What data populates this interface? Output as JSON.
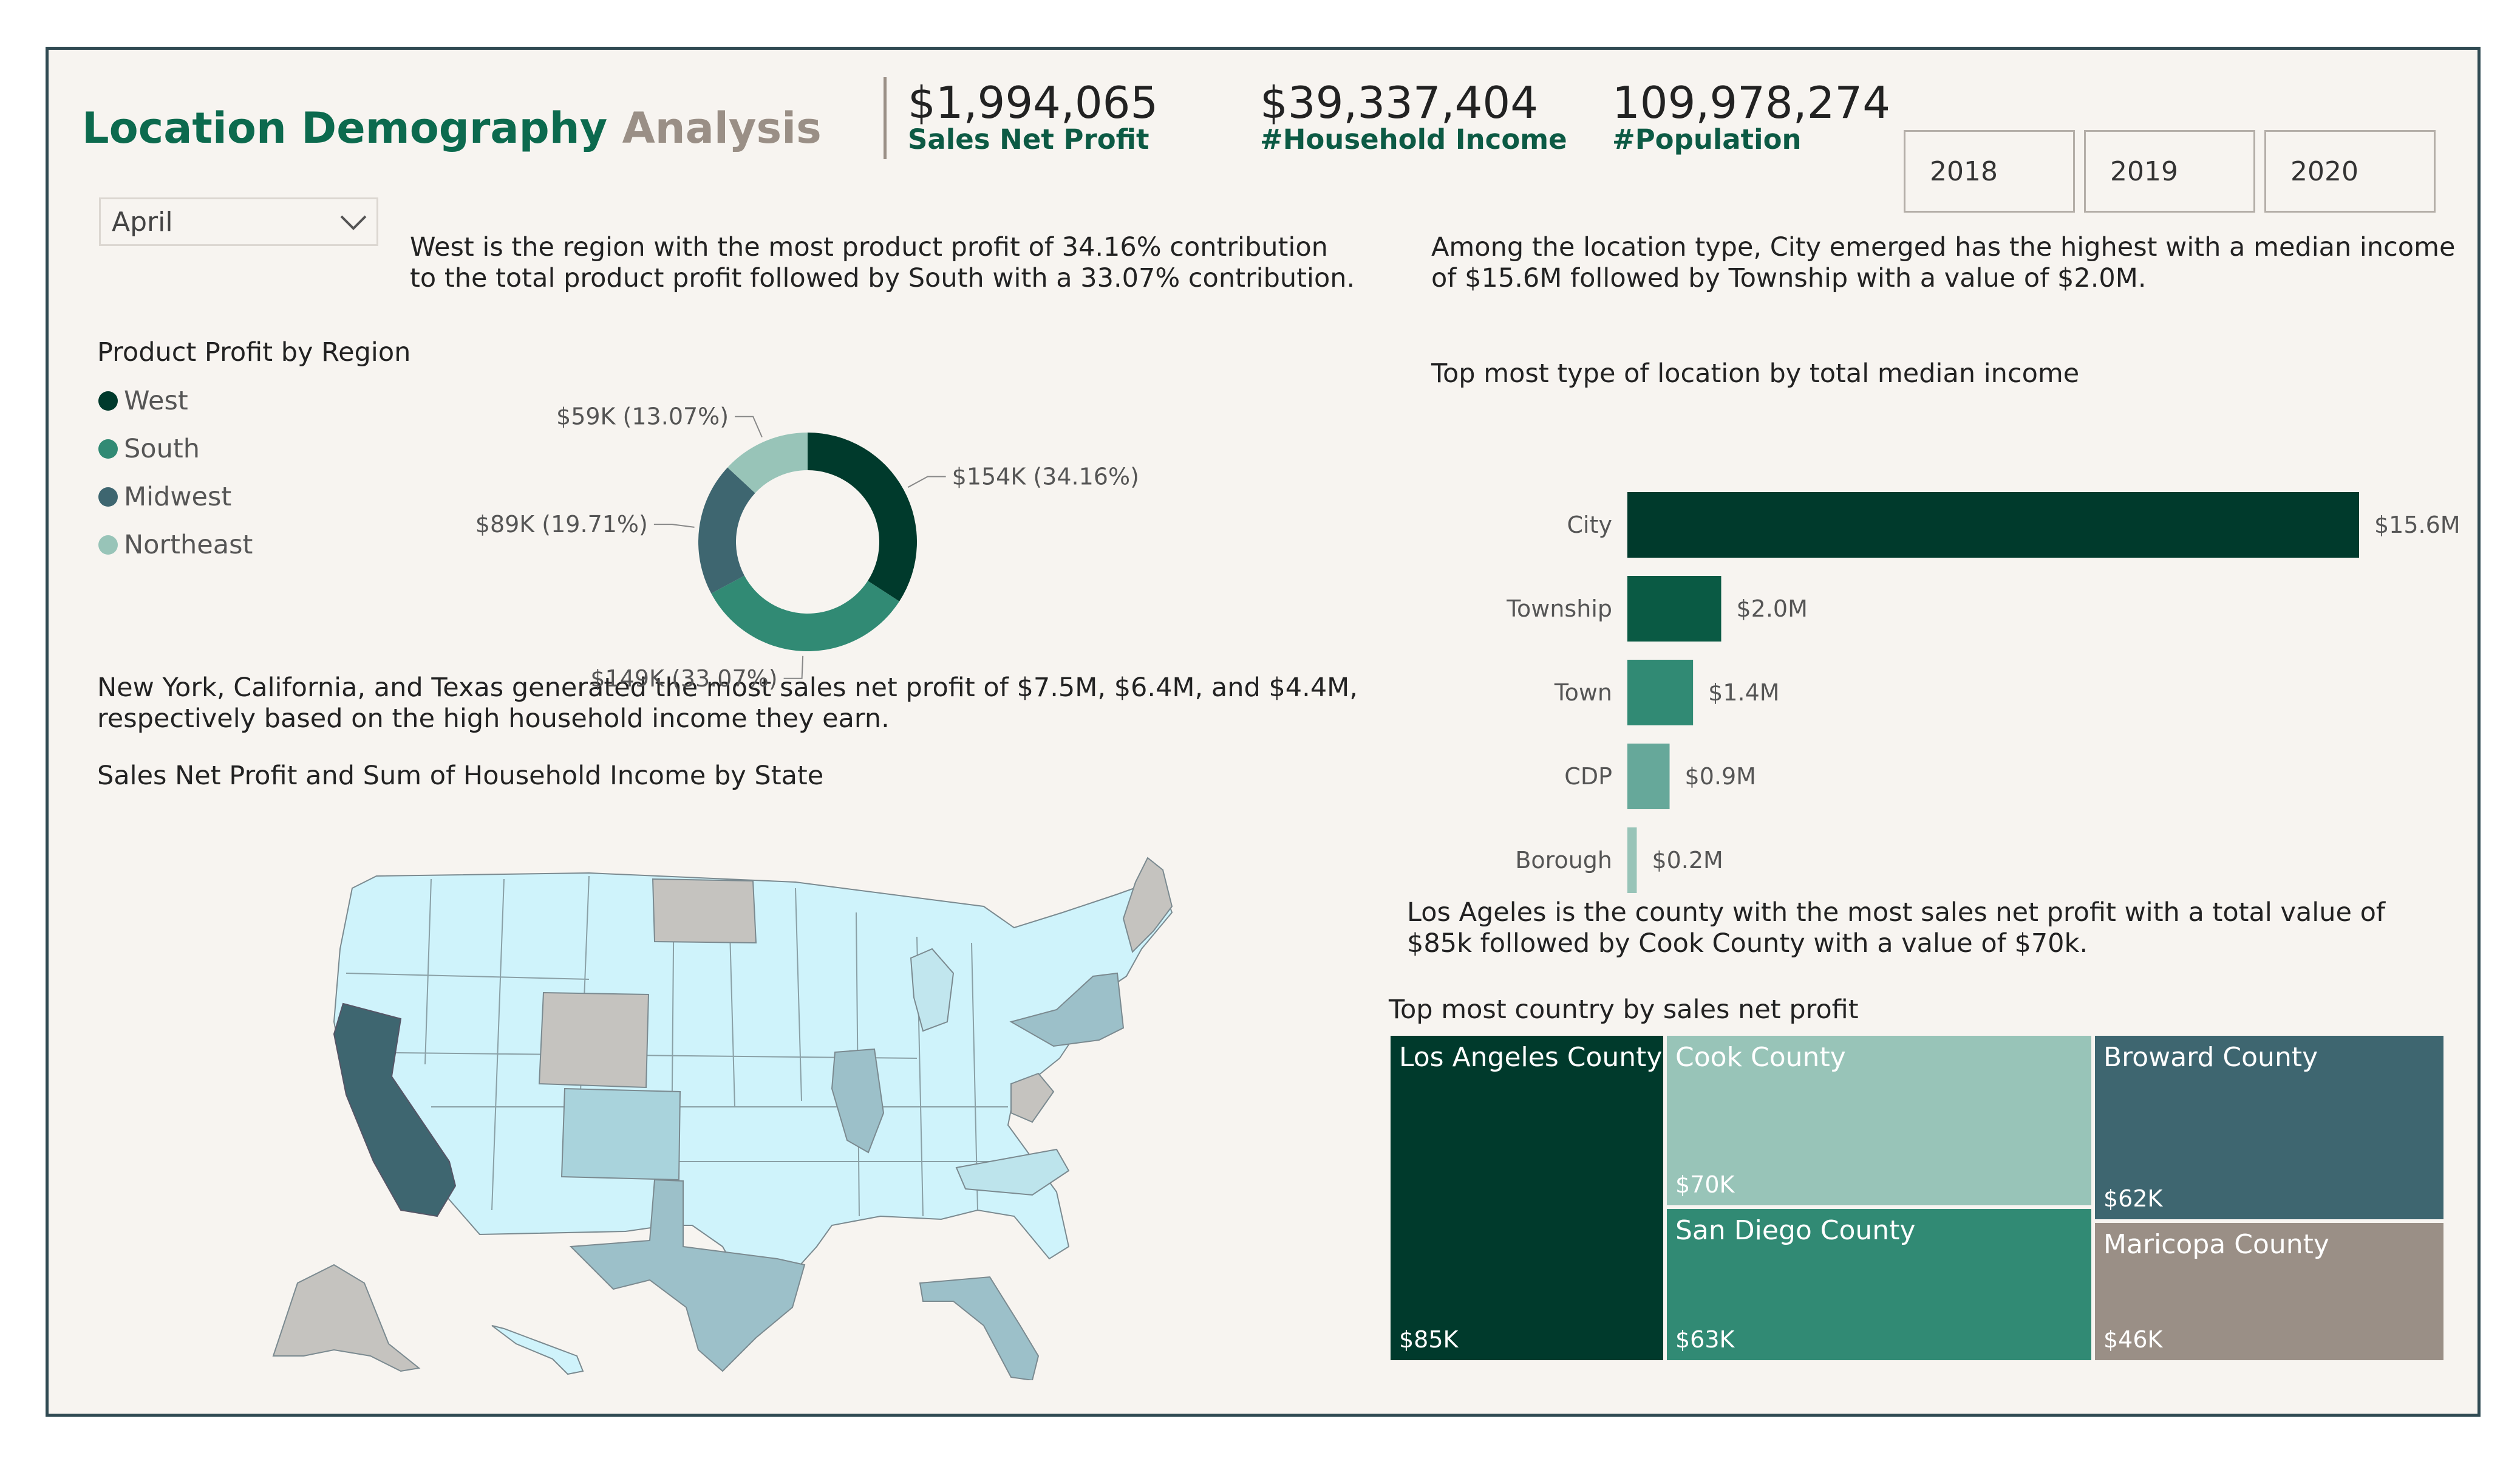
{
  "header": {
    "title_part1": "Location Demography",
    "title_part2": "Analysis",
    "kpis": [
      {
        "value": "$1,994,065",
        "label": "Sales Net Profit"
      },
      {
        "value": "$39,337,404",
        "label": "#Household Income"
      },
      {
        "value": "109,978,274",
        "label": "#Population"
      }
    ],
    "years": [
      "2018",
      "2019",
      "2020"
    ]
  },
  "filter": {
    "month": "April"
  },
  "insights": {
    "region": "West is the region with the most product profit of 34.16% contribution to the total product profit followed by South with a 33.07% contribution.",
    "location_type": "Among the location type, City emerged has the highest with a median income of $15.6M followed by Township with a value of $2.0M.",
    "state": "New York, California, and Texas generated the most sales net profit of $7.5M, $6.4M, and $4.4M, respectively based on the high household income they earn.",
    "county": "Los Ageles is the county with the most sales net profit with a total value of $85k followed by Cook County with a value of $70k."
  },
  "colors": {
    "dark_green": "#003a2c",
    "green": "#0a5a44",
    "teal": "#318a74",
    "light_teal": "#66a89a",
    "pale_teal": "#98c4b8",
    "slate": "#3e6670",
    "taupe": "#9a8f86",
    "title_green": "#0c6a4e",
    "title_gray": "#9a8f86"
  },
  "chart_data": [
    {
      "type": "pie",
      "title": "Product Profit by Region",
      "legend_placement": "left",
      "categories": [
        "West",
        "South",
        "Midwest",
        "Northeast"
      ],
      "values": [
        154,
        149,
        89,
        59
      ],
      "percents": [
        34.16,
        33.07,
        19.71,
        13.07
      ],
      "data_labels": [
        "$154K (34.16%)",
        "$149K (33.07%)",
        "$89K (19.71%)",
        "$59K (13.07%)"
      ],
      "colors": [
        "#003a2c",
        "#318a74",
        "#3e6670",
        "#98c4b8"
      ]
    },
    {
      "type": "bar",
      "orientation": "horizontal",
      "title": "Top most type of location by total median income",
      "categories": [
        "City",
        "Township",
        "Town",
        "CDP",
        "Borough"
      ],
      "values": [
        15.6,
        2.0,
        1.4,
        0.9,
        0.2
      ],
      "data_labels": [
        "$15.6M",
        "$2.0M",
        "$1.4M",
        "$0.9M",
        "$0.2M"
      ],
      "colors": [
        "#003a2c",
        "#0a5a44",
        "#318a74",
        "#66a89a",
        "#98c4b8"
      ]
    },
    {
      "type": "heatmap",
      "subtype": "choropleth",
      "title": "Sales Net Profit and Sum of Household Income by State",
      "highlighted": [
        "California",
        "Texas",
        "New York",
        "Florida",
        "Illinois"
      ]
    },
    {
      "type": "table",
      "subtype": "treemap",
      "title": "Top most country by sales net profit",
      "categories": [
        "Los Angeles County",
        "Cook County",
        "San Diego County",
        "Broward County",
        "Maricopa County"
      ],
      "values": [
        85,
        70,
        63,
        62,
        46
      ],
      "data_labels": [
        "$85K",
        "$70K",
        "$63K",
        "$62K",
        "$46K"
      ],
      "colors": [
        "#003a2c",
        "#98c4b8",
        "#318a74",
        "#3e6670",
        "#9a8f86"
      ]
    }
  ]
}
